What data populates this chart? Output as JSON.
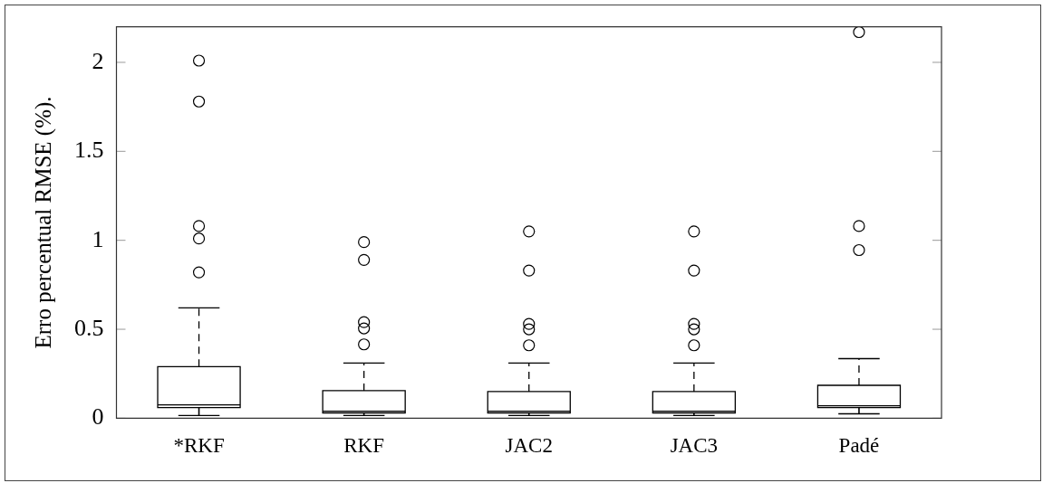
{
  "chart_data": {
    "type": "box",
    "ylabel": "Erro percentual RMSE (%).",
    "categories": [
      "*RKF",
      "RKF",
      "JAC2",
      "JAC3",
      "Padé"
    ],
    "ylim": [
      0,
      2.2
    ],
    "yticks": [
      0,
      0.5,
      1,
      1.5,
      2
    ],
    "grid": false,
    "legend": false,
    "marker": "circle",
    "boxes": [
      {
        "low": 0.015,
        "q1": 0.06,
        "median": 0.075,
        "q3": 0.29,
        "high": 0.62,
        "outliers": [
          2.01,
          1.78,
          1.08,
          1.01,
          0.82
        ]
      },
      {
        "low": 0.015,
        "q1": 0.03,
        "median": 0.04,
        "q3": 0.155,
        "high": 0.31,
        "outliers": [
          0.99,
          0.89,
          0.54,
          0.505,
          0.415
        ]
      },
      {
        "low": 0.015,
        "q1": 0.03,
        "median": 0.04,
        "q3": 0.15,
        "high": 0.31,
        "outliers": [
          1.05,
          0.83,
          0.53,
          0.5,
          0.41
        ]
      },
      {
        "low": 0.015,
        "q1": 0.03,
        "median": 0.04,
        "q3": 0.15,
        "high": 0.31,
        "outliers": [
          1.05,
          0.83,
          0.53,
          0.5,
          0.41
        ]
      },
      {
        "low": 0.025,
        "q1": 0.06,
        "median": 0.07,
        "q3": 0.185,
        "high": 0.335,
        "outliers": [
          2.17,
          1.08,
          0.945
        ]
      }
    ]
  }
}
